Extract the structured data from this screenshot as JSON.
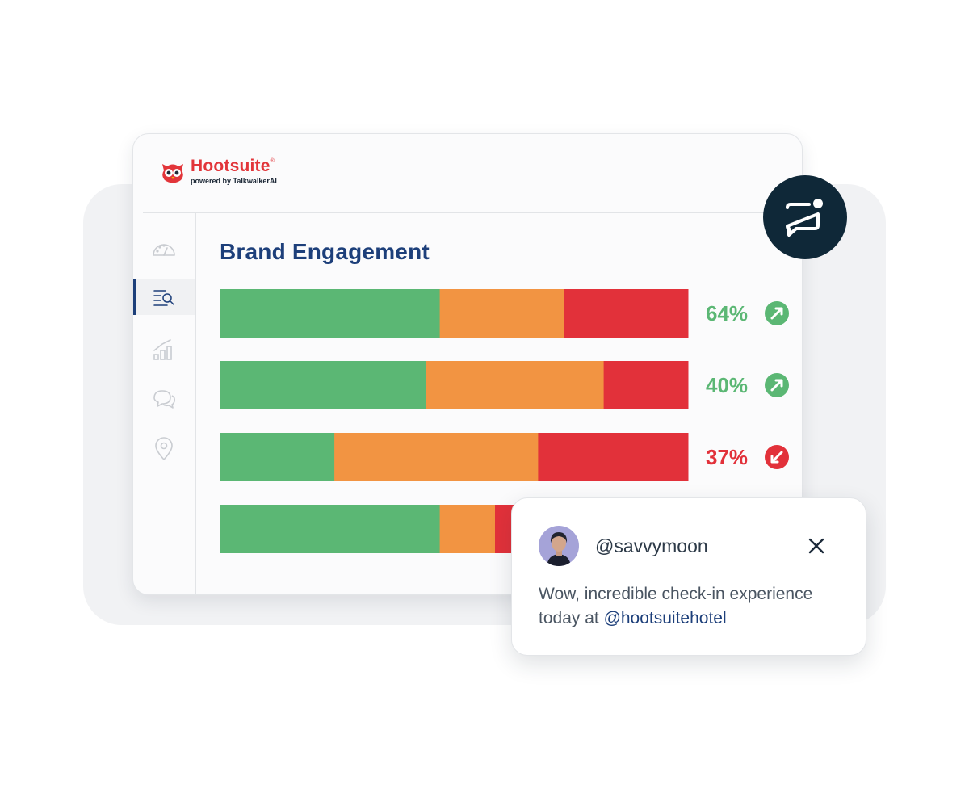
{
  "brand": {
    "name": "Hootsuite",
    "reg": "®",
    "subtitle": "powered by TalkwalkerAI"
  },
  "sidebar": {
    "items": [
      {
        "icon": "dashboard-gauge-icon",
        "active": false
      },
      {
        "icon": "search-list-icon",
        "active": true
      },
      {
        "icon": "analytics-chart-icon",
        "active": false
      },
      {
        "icon": "chat-bubbles-icon",
        "active": false
      },
      {
        "icon": "location-pin-icon",
        "active": false
      }
    ]
  },
  "panel": {
    "title": "Brand Engagement"
  },
  "colors": {
    "positive": "#5bb774",
    "neutral": "#f29442",
    "negative": "#e2313a",
    "accent": "#1d3f7a",
    "bubble": "#0f2838"
  },
  "chart_data": {
    "type": "bar",
    "orientation": "horizontal",
    "stacked": true,
    "normalized": true,
    "series": [
      {
        "color": "#5bb774",
        "values": [
          0.47,
          0.44,
          0.245,
          0.47
        ]
      },
      {
        "color": "#f29442",
        "values": [
          0.265,
          0.38,
          0.435,
          0.118
        ]
      },
      {
        "color": "#e2313a",
        "values": [
          0.265,
          0.18,
          0.32,
          0.412
        ]
      }
    ],
    "labels": [
      {
        "text": "64%",
        "trend": "up"
      },
      {
        "text": "40%",
        "trend": "up"
      },
      {
        "text": "37%",
        "trend": "down"
      },
      {
        "text": "",
        "trend": ""
      }
    ]
  },
  "mention": {
    "handle": "@savvymoon",
    "text": "Wow, incredible check-in experience today at ",
    "tag": "@hootsuitehotel"
  }
}
